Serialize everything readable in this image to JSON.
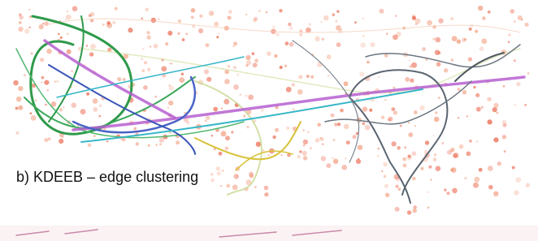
{
  "caption": "b) KDEEB – edge clustering"
}
